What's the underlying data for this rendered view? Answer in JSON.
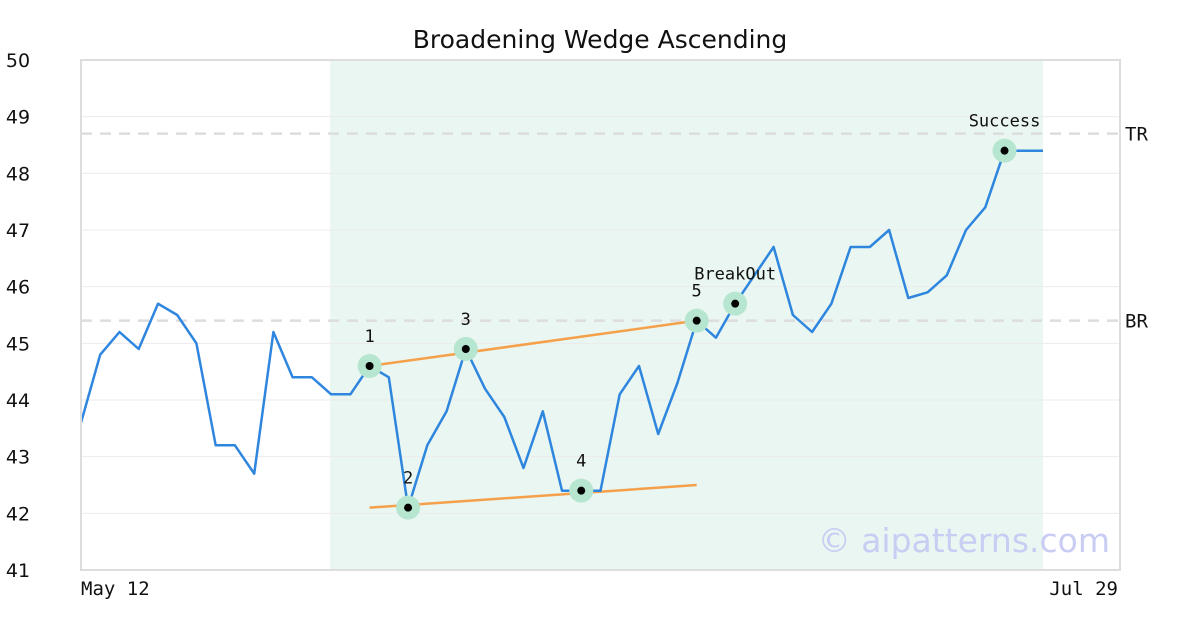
{
  "chart_data": {
    "type": "line",
    "title": "Broadening Wedge Ascending",
    "xlabel": "",
    "ylabel": "",
    "ylim": [
      41,
      50
    ],
    "y_ticks": [
      "41",
      "42",
      "43",
      "44",
      "45",
      "46",
      "47",
      "48",
      "49",
      "50"
    ],
    "x_tick_labels": {
      "start": "May 12",
      "end": "Jul 29"
    },
    "grid": true,
    "colors": {
      "line": "#2e86de",
      "trendline": "#f5a04a",
      "highlight": "#eaf6f1",
      "marker_halo": "#b6e6cf",
      "reference": "#dddddd",
      "watermark": "#c9ccf3",
      "frame": "#dddddd"
    },
    "series": [
      {
        "values": [
          43.6,
          44.8,
          45.2,
          44.9,
          45.7,
          45.5,
          45.0,
          43.2,
          43.2,
          42.7,
          45.2,
          44.4,
          44.4,
          44.1,
          44.1,
          44.6,
          44.4,
          42.1,
          43.2,
          43.8,
          44.9,
          44.2,
          43.7,
          42.8,
          43.8,
          42.4,
          42.4,
          42.4,
          44.1,
          44.6,
          43.4,
          44.3,
          45.4,
          45.1,
          45.7,
          46.2,
          46.7,
          45.5,
          45.2,
          45.7,
          46.7,
          46.7,
          47.0,
          45.8,
          45.9,
          46.2,
          47.0,
          47.4,
          48.4,
          48.4,
          48.4
        ]
      }
    ],
    "highlight_range": {
      "start_index": 13,
      "end_index": 50
    },
    "reference_lines": [
      {
        "label": "TR",
        "value": 48.7
      },
      {
        "label": "BR",
        "value": 45.4
      }
    ],
    "trendlines": [
      {
        "from": {
          "index": 15,
          "value": 44.6
        },
        "to": {
          "index": 32,
          "value": 45.4
        }
      },
      {
        "from": {
          "index": 15,
          "value": 42.1
        },
        "to": {
          "index": 32,
          "value": 42.5
        }
      }
    ],
    "points": [
      {
        "label": "1",
        "index": 15,
        "value": 44.6
      },
      {
        "label": "2",
        "index": 17,
        "value": 42.1
      },
      {
        "label": "3",
        "index": 20,
        "value": 44.9
      },
      {
        "label": "4",
        "index": 26,
        "value": 42.4
      },
      {
        "label": "5",
        "index": 32,
        "value": 45.4
      },
      {
        "label": "BreakOut",
        "index": 34,
        "value": 45.7
      },
      {
        "label": "Success",
        "index": 48,
        "value": 48.4
      }
    ],
    "watermark": "© aipatterns.com"
  }
}
